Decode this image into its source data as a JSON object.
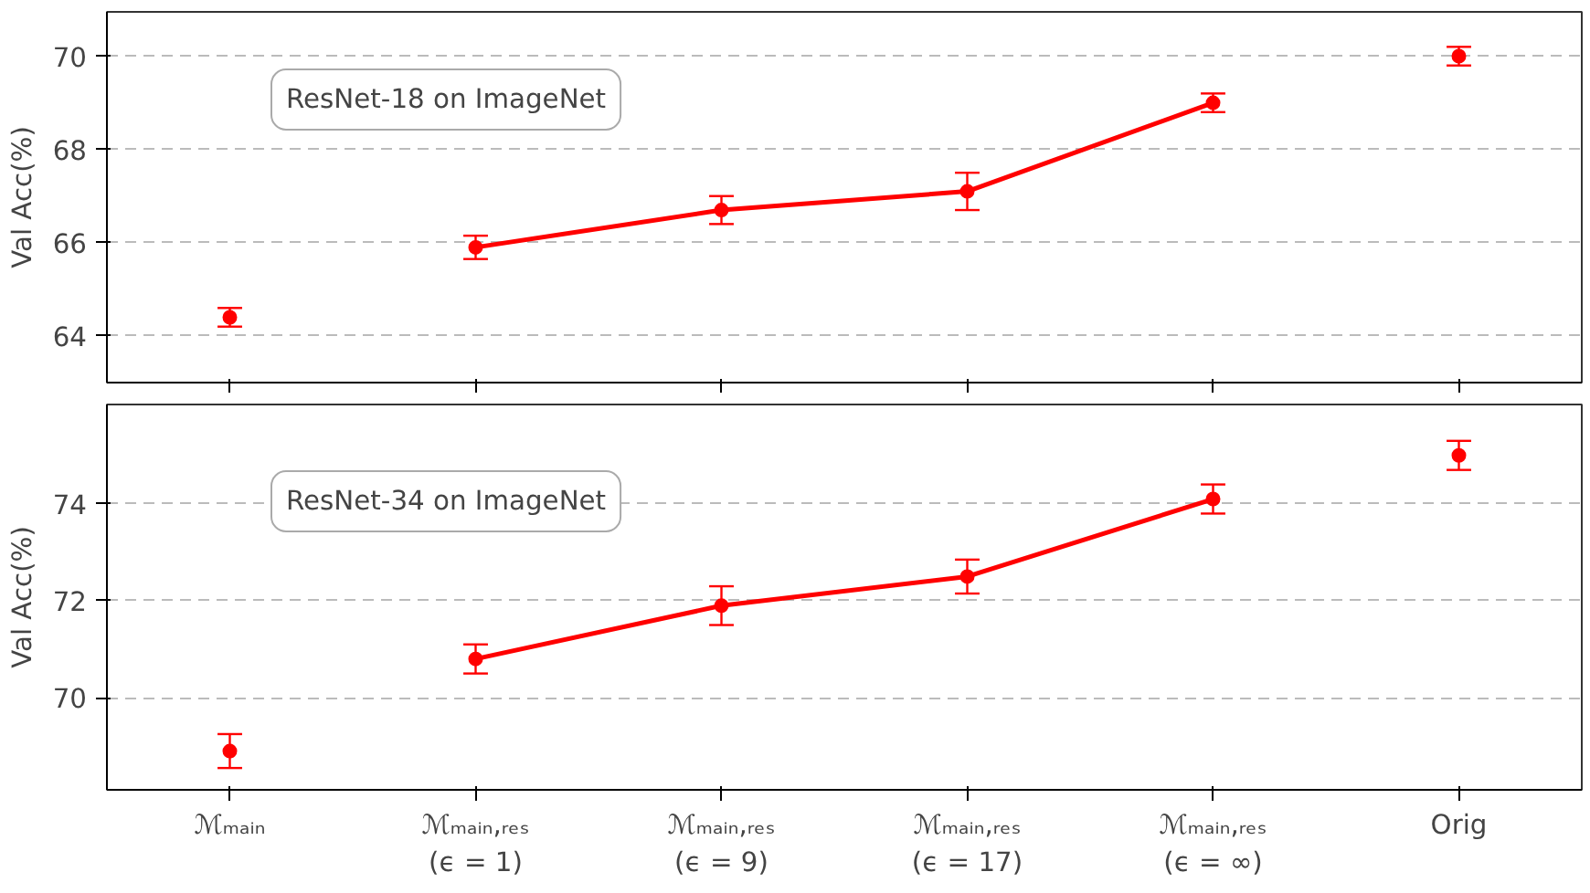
{
  "chart_data": [
    {
      "type": "line",
      "ylabel": "Val Acc(%)",
      "annotations": [
        "ResNet-18 on ImageNet"
      ],
      "categories": [
        null,
        null,
        null,
        null,
        null,
        null
      ],
      "ylim": [
        63,
        70.95
      ],
      "yticks": [
        64,
        66,
        68,
        70
      ],
      "grid": "y",
      "tick_labels": "y",
      "marker": "circle",
      "series": [
        {
          "color": "#ff0000",
          "values": [
            null,
            65.9,
            66.7,
            67.1,
            69.0,
            null
          ],
          "errors": [
            null,
            0.25,
            0.3,
            0.4,
            0.2,
            null
          ]
        },
        {
          "type": "scatter",
          "color": "#ff0000",
          "values": [
            64.4,
            null,
            null,
            null,
            null,
            70.0
          ],
          "errors": [
            0.2,
            null,
            null,
            null,
            null,
            0.2
          ]
        }
      ]
    },
    {
      "type": "line",
      "ylabel": "Val Acc(%)",
      "annotations": [
        "ResNet-34 on ImageNet"
      ],
      "categories": [
        "ℳₘₐᵢₙ",
        "ℳₘₐᵢₙ,ᵣₑₛ\n(ϵ = 1)",
        "ℳₘₐᵢₙ,ᵣₑₛ\n(ϵ = 9)",
        "ℳₘₐᵢₙ,ᵣₑₛ\n(ϵ = 17)",
        "ℳₘₐᵢₙ,ᵣₑₛ\n(ϵ = ∞)",
        "Orig"
      ],
      "ylim": [
        68.1,
        76.05
      ],
      "yticks": [
        70,
        72,
        74
      ],
      "grid": "y",
      "marker": "circle",
      "series": [
        {
          "color": "#ff0000",
          "values": [
            null,
            70.8,
            71.9,
            72.5,
            74.1,
            null
          ],
          "errors": [
            null,
            0.3,
            0.4,
            0.35,
            0.3,
            null
          ]
        },
        {
          "type": "scatter",
          "color": "#ff0000",
          "values": [
            68.9,
            null,
            null,
            null,
            null,
            75.0
          ],
          "errors": [
            0.35,
            null,
            null,
            null,
            null,
            0.3
          ]
        }
      ]
    }
  ]
}
